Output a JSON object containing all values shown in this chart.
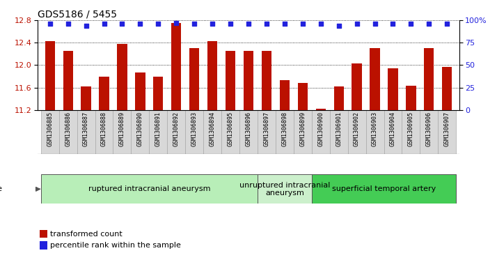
{
  "title": "GDS5186 / 5455",
  "samples": [
    "GSM1306885",
    "GSM1306886",
    "GSM1306887",
    "GSM1306888",
    "GSM1306889",
    "GSM1306890",
    "GSM1306891",
    "GSM1306892",
    "GSM1306893",
    "GSM1306894",
    "GSM1306895",
    "GSM1306896",
    "GSM1306897",
    "GSM1306898",
    "GSM1306899",
    "GSM1306900",
    "GSM1306901",
    "GSM1306902",
    "GSM1306903",
    "GSM1306904",
    "GSM1306905",
    "GSM1306906",
    "GSM1306907"
  ],
  "transformed_count": [
    12.43,
    12.25,
    11.62,
    11.79,
    12.38,
    11.87,
    11.79,
    12.75,
    12.31,
    12.43,
    12.25,
    12.25,
    12.25,
    11.73,
    11.68,
    11.22,
    11.62,
    12.03,
    12.31,
    11.94,
    11.63,
    12.31,
    11.97
  ],
  "percentile_rank": [
    96,
    96,
    94,
    96,
    96,
    96,
    96,
    97,
    96,
    96,
    96,
    96,
    96,
    96,
    96,
    96,
    94,
    96,
    96,
    96,
    96,
    96,
    96
  ],
  "groups": [
    {
      "label": "ruptured intracranial aneurysm",
      "start": 0,
      "end": 11,
      "color": "#b8eeb8"
    },
    {
      "label": "unruptured intracranial\naneurysm",
      "start": 12,
      "end": 14,
      "color": "#ccf0cc"
    },
    {
      "label": "superficial temporal artery",
      "start": 15,
      "end": 22,
      "color": "#44cc55"
    }
  ],
  "ylim_left": [
    11.2,
    12.8
  ],
  "ylim_right": [
    0,
    100
  ],
  "yticks_left": [
    11.2,
    11.6,
    12.0,
    12.4,
    12.8
  ],
  "yticks_right": [
    0,
    25,
    50,
    75,
    100
  ],
  "bar_color": "#bb1100",
  "dot_color": "#2222dd",
  "fig_bg": "#ffffff",
  "plot_bg": "#ffffff",
  "xtick_bg": "#d8d8d8",
  "title_fontsize": 10,
  "tick_fontsize": 6,
  "group_label_fontsize": 8,
  "legend_fontsize": 8
}
